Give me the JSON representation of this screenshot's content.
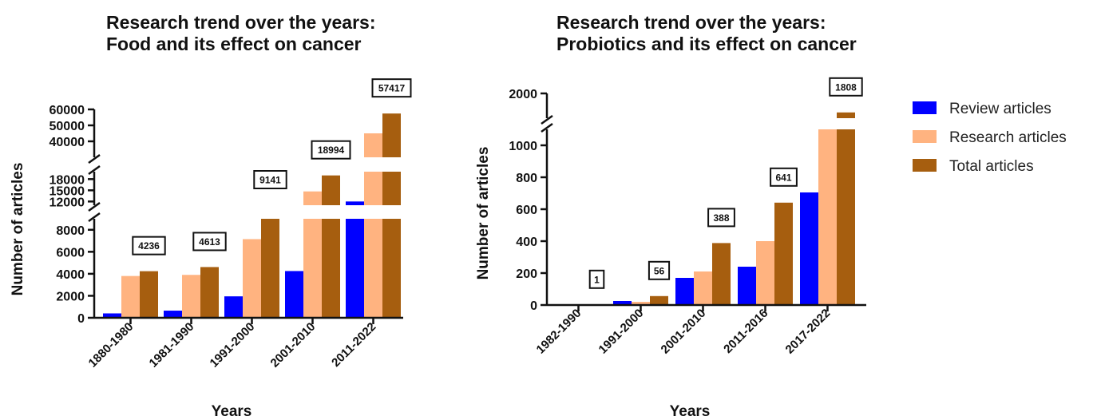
{
  "legend": [
    {
      "name": "Review articles",
      "color": "#0000ff"
    },
    {
      "name": "Research articles",
      "color": "#ffb380"
    },
    {
      "name": "Total articles",
      "color": "#a65e0f"
    }
  ],
  "chart_data": [
    {
      "type": "bar",
      "title_lines": [
        "Research trend over the years:",
        "Food and its effect on cancer"
      ],
      "xlabel": "Years",
      "ylabel": "Number of articles",
      "y_scale": "broken",
      "y_segments": [
        [
          0,
          9000
        ],
        [
          11000,
          20000
        ],
        [
          30000,
          60000
        ]
      ],
      "y_ticks": [
        [
          0,
          2000,
          4000,
          6000,
          8000
        ],
        [
          12000,
          15000,
          18000
        ],
        [
          40000,
          50000,
          60000
        ]
      ],
      "y_tick_labels": [
        [
          "0",
          "2000",
          "4000",
          "6000",
          "8000"
        ],
        [
          "12000",
          "15000",
          "18000"
        ],
        [
          "40000",
          "50000",
          "60000"
        ]
      ],
      "categories": [
        "1880-1980",
        "1981-1990",
        "1991-2000",
        "2001-2010",
        "2011-2022"
      ],
      "series": [
        {
          "name": "Review articles",
          "values": [
            400,
            650,
            1950,
            4250,
            12000
          ]
        },
        {
          "name": "Research articles",
          "values": [
            3800,
            3900,
            7150,
            14700,
            45000
          ]
        },
        {
          "name": "Total articles",
          "values": [
            4236,
            4613,
            9141,
            18994,
            57417
          ]
        }
      ],
      "data_labels": [
        "4236",
        "4613",
        "9141",
        "18994",
        "57417"
      ]
    },
    {
      "type": "bar",
      "title_lines": [
        "Research trend over the years:",
        "Probiotics and its effect on cancer"
      ],
      "xlabel": "Years",
      "ylabel": "Number of articles",
      "y_scale": "broken",
      "y_segments": [
        [
          0,
          1100
        ],
        [
          1750,
          2000
        ]
      ],
      "y_ticks": [
        [
          0,
          200,
          400,
          600,
          800,
          1000
        ],
        [
          2000
        ]
      ],
      "y_tick_labels": [
        [
          "0",
          "200",
          "400",
          "600",
          "800",
          "1000"
        ],
        [
          "2000"
        ]
      ],
      "categories": [
        "1982-1990",
        "1991-2000",
        "2001-2010",
        "2011-2016",
        "2017-2022"
      ],
      "series": [
        {
          "name": "Review articles",
          "values": [
            0,
            25,
            170,
            240,
            705
          ]
        },
        {
          "name": "Research articles",
          "values": [
            1,
            20,
            210,
            400,
            1100
          ]
        },
        {
          "name": "Total articles",
          "values": [
            1,
            56,
            388,
            641,
            1808
          ]
        }
      ],
      "data_labels": [
        "1",
        "56",
        "388",
        "641",
        "1808"
      ]
    }
  ]
}
